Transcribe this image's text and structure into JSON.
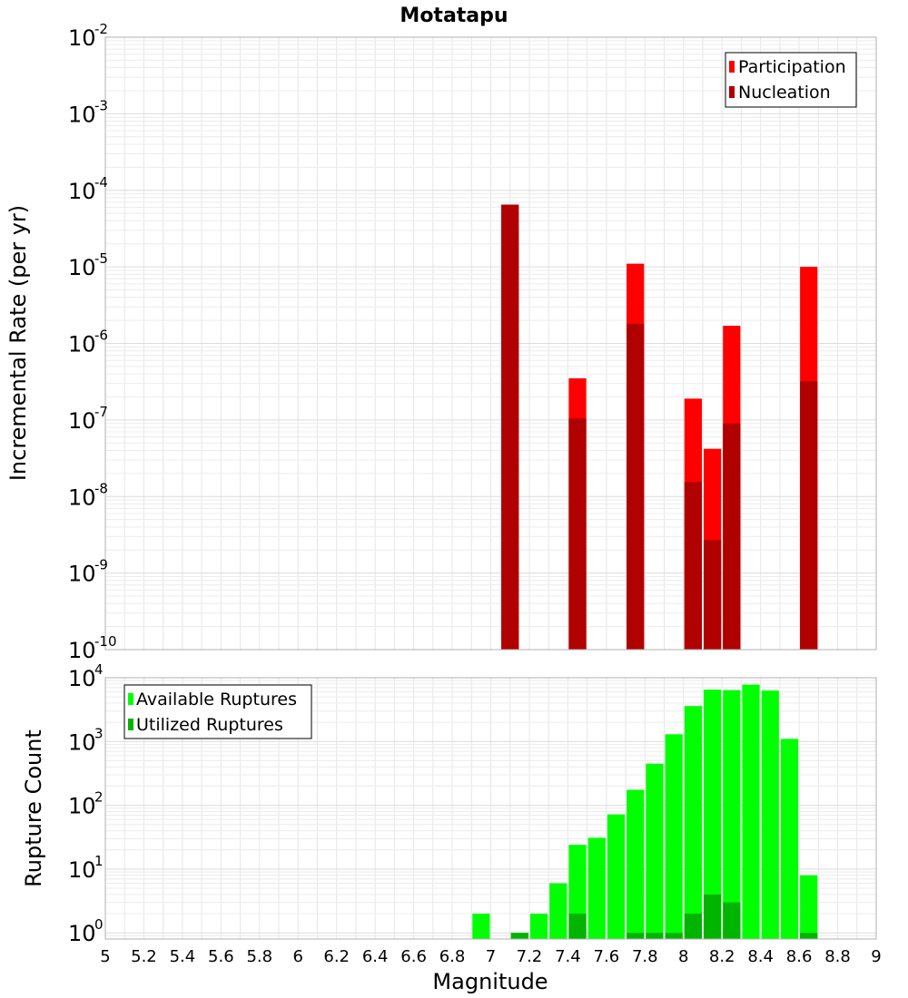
{
  "chart_data": [
    {
      "type": "bar",
      "title": "Motatapu",
      "ylabel": "Incremental Rate (per yr)",
      "xlabel": "",
      "yscale": "log",
      "ylim": [
        1e-10,
        0.01
      ],
      "xlim": [
        5,
        9
      ],
      "ytick_exponents": [
        -10,
        -9,
        -8,
        -7,
        -6,
        -5,
        -4,
        -3,
        -2
      ],
      "grid": true,
      "legend_position": "top-right",
      "bar_width": 0.1,
      "series": [
        {
          "name": "Participation",
          "color": "#ff0000",
          "x": [
            7.1,
            7.45,
            7.75,
            8.05,
            8.15,
            8.25,
            8.65
          ],
          "values": [
            6.5e-05,
            3.5e-07,
            1.1e-05,
            1.9e-07,
            4.2e-08,
            1.7e-06,
            1e-05
          ]
        },
        {
          "name": "Nucleation",
          "color": "#b00000",
          "x": [
            7.1,
            7.45,
            7.75,
            8.05,
            8.15,
            8.25,
            8.65
          ],
          "values": [
            6.5e-05,
            1.05e-07,
            1.8e-06,
            1.55e-08,
            2.7e-09,
            9e-08,
            3.2e-07
          ]
        }
      ]
    },
    {
      "type": "bar",
      "title": "",
      "ylabel": "Rupture Count",
      "xlabel": "Magnitude",
      "yscale": "log",
      "ylim": [
        0.8,
        10000
      ],
      "xlim": [
        5,
        9
      ],
      "ytick_exponents": [
        0,
        1,
        2,
        3,
        4
      ],
      "xticks": [
        "5",
        "5.2",
        "5.4",
        "5.6",
        "5.8",
        "6",
        "6.2",
        "6.4",
        "6.6",
        "6.8",
        "7",
        "7.2",
        "7.4",
        "7.6",
        "7.8",
        "8",
        "8.2",
        "8.4",
        "8.6",
        "8.8",
        "9"
      ],
      "grid": true,
      "legend_position": "top-left",
      "bar_width": 0.1,
      "series": [
        {
          "name": "Available Ruptures",
          "color": "#00ff00",
          "x": [
            6.95,
            7.15,
            7.25,
            7.35,
            7.45,
            7.55,
            7.65,
            7.75,
            7.85,
            7.95,
            8.05,
            8.15,
            8.25,
            8.35,
            8.45,
            8.55,
            8.65
          ],
          "values": [
            2,
            1,
            2,
            6,
            24,
            31,
            72,
            175,
            450,
            1300,
            3600,
            6500,
            6400,
            7800,
            6300,
            1100,
            8
          ]
        },
        {
          "name": "Utilized Ruptures",
          "color": "#00b400",
          "x": [
            7.15,
            7.45,
            7.75,
            7.85,
            7.95,
            8.05,
            8.15,
            8.25,
            8.65
          ],
          "values": [
            1,
            2,
            1,
            1,
            1,
            2,
            4,
            3,
            1
          ]
        }
      ]
    }
  ]
}
